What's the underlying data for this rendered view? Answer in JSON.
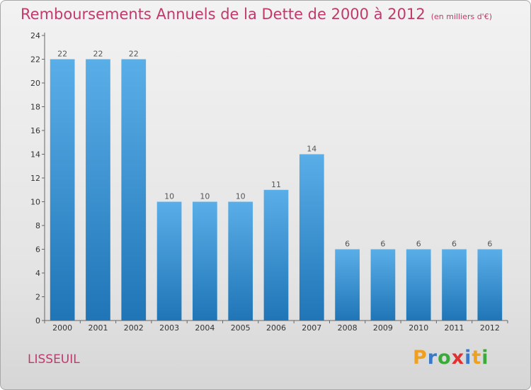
{
  "title": "Remboursements Annuels de la Dette de 2000 à 2012",
  "subtitle": "(en milliers d'€)",
  "commune": "LISSEUIL",
  "brand": "Proxiti",
  "colors": {
    "title": "#c03a6a",
    "bar_top": "#5aaee8",
    "bar_bottom": "#1f75b6"
  },
  "chart_data": {
    "type": "bar",
    "categories": [
      "2000",
      "2001",
      "2002",
      "2003",
      "2004",
      "2005",
      "2006",
      "2007",
      "2008",
      "2009",
      "2010",
      "2011",
      "2012"
    ],
    "values": [
      22,
      22,
      22,
      10,
      10,
      10,
      11,
      14,
      6,
      6,
      6,
      6,
      6
    ],
    "yticks": [
      0,
      2,
      4,
      6,
      8,
      10,
      12,
      14,
      16,
      18,
      20,
      22,
      24
    ],
    "ylim": [
      0,
      24
    ],
    "grid": false,
    "legend": "none"
  }
}
